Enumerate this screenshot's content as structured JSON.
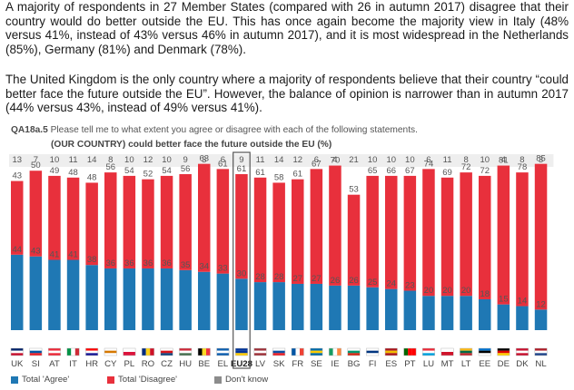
{
  "text": {
    "paragraph1": "A majority of respondents in 27 Member States (compared with 26 in autumn 2017) disagree that their country would do better outside the EU. This has once again become the majority view in Italy (48% versus 41%, instead of 43% versus 46% in autumn 2017), and it is most widespread in the Netherlands (85%), Germany (81%) and Denmark (78%).",
    "paragraph2": "The United Kingdom is the only country where a majority of respondents believe that their country “could better face the future outside the EU”. However, the balance of opinion is narrower than in autumn 2017 (44% versus 43%, instead of 49% versus 41%)."
  },
  "chart_data": {
    "type": "bar",
    "question_id": "QA18a.5",
    "question": "Please tell me to what extent you agree or disagree with each of the following statements.",
    "title": "(OUR COUNTRY) could better face the future outside the EU (%)",
    "categories": [
      "UK",
      "SI",
      "AT",
      "IT",
      "HR",
      "CY",
      "PL",
      "RO",
      "CZ",
      "HU",
      "BE",
      "EL",
      "EU28",
      "LV",
      "SK",
      "FR",
      "SE",
      "IE",
      "BG",
      "FI",
      "ES",
      "PT",
      "LU",
      "MT",
      "LT",
      "EE",
      "DE",
      "DK",
      "NL"
    ],
    "highlight_category": "EU28",
    "series": [
      {
        "name": "Total 'Agree'",
        "color": "#1f78b4",
        "values": [
          44,
          43,
          41,
          41,
          38,
          36,
          36,
          36,
          36,
          35,
          34,
          33,
          30,
          28,
          28,
          27,
          27,
          26,
          26,
          25,
          24,
          23,
          20,
          20,
          20,
          18,
          15,
          14,
          12
        ]
      },
      {
        "name": "Total 'Disagree'",
        "color": "#e8303c",
        "values": [
          43,
          50,
          49,
          48,
          48,
          56,
          54,
          52,
          54,
          56,
          63,
          61,
          61,
          61,
          58,
          61,
          67,
          70,
          53,
          65,
          66,
          67,
          74,
          69,
          72,
          72,
          81,
          78,
          85
        ]
      },
      {
        "name": "Don't know",
        "color": "#8c8c8c",
        "values": [
          13,
          7,
          10,
          11,
          14,
          8,
          10,
          12,
          10,
          9,
          3,
          6,
          9,
          11,
          14,
          12,
          6,
          4,
          21,
          10,
          10,
          10,
          6,
          11,
          8,
          10,
          4,
          8,
          3
        ]
      }
    ],
    "ylim": [
      0,
      100
    ],
    "stacking": "agree-bottom, disagree-top, dont-know-shown-as-top-labels",
    "legend_position": "bottom",
    "flags": [
      "uk",
      "si",
      "at",
      "it",
      "hr",
      "cy",
      "pl",
      "ro",
      "cz",
      "hu",
      "be",
      "el",
      "eu",
      "lv",
      "sk",
      "fr",
      "se",
      "ie",
      "bg",
      "fi",
      "es",
      "pt",
      "lu",
      "mt",
      "lt",
      "ee",
      "de",
      "dk",
      "nl"
    ]
  },
  "colors": {
    "agree": "#1f78b4",
    "disagree": "#e8303c",
    "dont_know": "#8c8c8c",
    "dont_know_strip": "#d9d9d9"
  }
}
